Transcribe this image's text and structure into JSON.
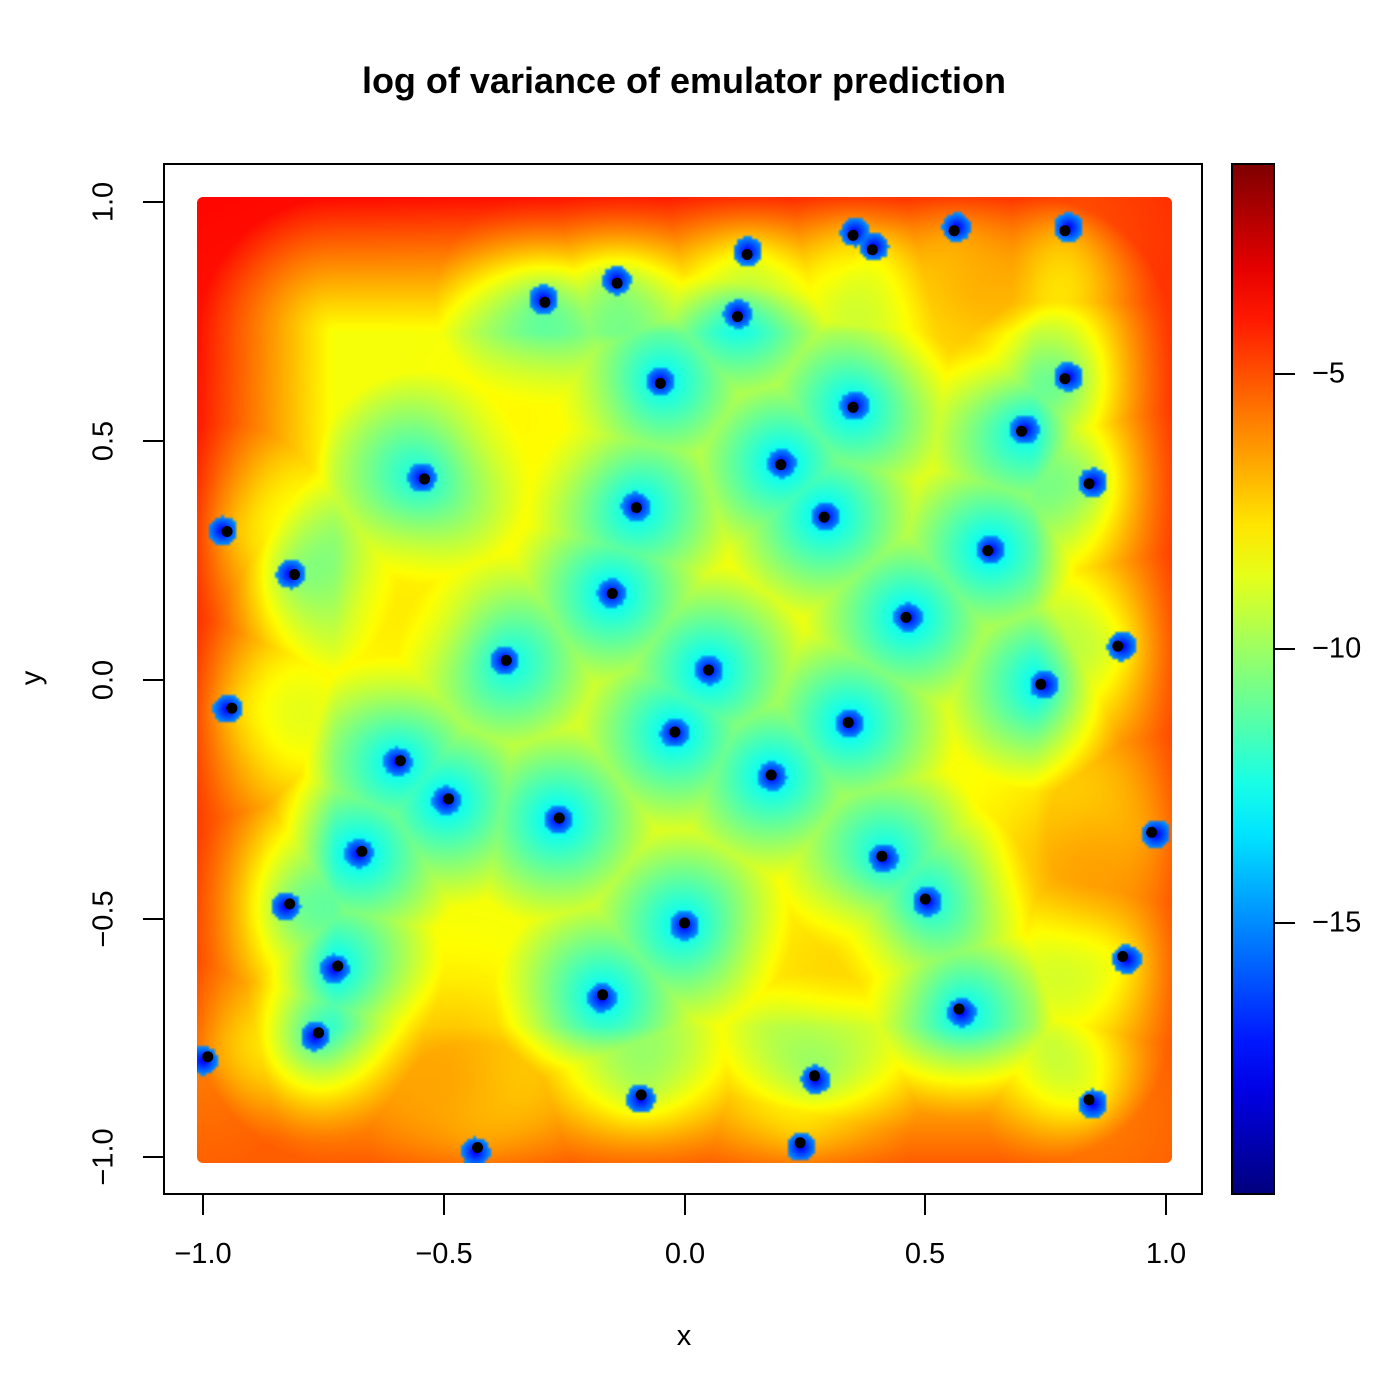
{
  "chart_data": {
    "type": "heatmap",
    "title": "log of variance of emulator prediction",
    "xlabel": "x",
    "ylabel": "y",
    "xlim": [
      -1.0,
      1.0
    ],
    "ylim": [
      -1.0,
      1.0
    ],
    "x_ticks": [
      "−1.0",
      "−0.5",
      "0.0",
      "0.5",
      "1.0"
    ],
    "y_ticks": [
      "−1.0",
      "−0.5",
      "0.0",
      "0.5",
      "1.0"
    ],
    "colorbar": {
      "range": [
        -20,
        -1.5
      ],
      "ticks": [
        "−5",
        "−10",
        "−15"
      ],
      "tick_values": [
        -5,
        -10,
        -15
      ],
      "palette": "jet (dark blue → blue → cyan → yellow → red → dark red)"
    },
    "grid": false,
    "legend": "colorbar right",
    "design_points": [
      [
        0.79,
        0.94
      ],
      [
        0.35,
        0.93
      ],
      [
        0.13,
        0.89
      ],
      [
        -0.14,
        0.83
      ],
      [
        -0.29,
        0.79
      ],
      [
        0.56,
        0.94
      ],
      [
        0.39,
        0.9
      ],
      [
        0.11,
        0.76
      ],
      [
        -0.05,
        0.62
      ],
      [
        0.79,
        0.63
      ],
      [
        0.35,
        0.57
      ],
      [
        0.7,
        0.52
      ],
      [
        0.2,
        0.45
      ],
      [
        -0.54,
        0.42
      ],
      [
        -0.1,
        0.36
      ],
      [
        0.29,
        0.34
      ],
      [
        0.84,
        0.41
      ],
      [
        -0.95,
        0.31
      ],
      [
        -0.81,
        0.22
      ],
      [
        0.63,
        0.27
      ],
      [
        -0.15,
        0.18
      ],
      [
        0.46,
        0.13
      ],
      [
        -0.37,
        0.04
      ],
      [
        0.05,
        0.02
      ],
      [
        0.9,
        0.07
      ],
      [
        0.74,
        -0.01
      ],
      [
        -0.94,
        -0.06
      ],
      [
        -0.02,
        -0.11
      ],
      [
        0.34,
        -0.09
      ],
      [
        -0.59,
        -0.17
      ],
      [
        0.18,
        -0.2
      ],
      [
        -0.49,
        -0.25
      ],
      [
        -0.26,
        -0.29
      ],
      [
        -0.67,
        -0.36
      ],
      [
        0.41,
        -0.37
      ],
      [
        -0.82,
        -0.47
      ],
      [
        0.5,
        -0.46
      ],
      [
        0.0,
        -0.51
      ],
      [
        -0.72,
        -0.6
      ],
      [
        0.91,
        -0.58
      ],
      [
        -0.17,
        -0.66
      ],
      [
        0.57,
        -0.69
      ],
      [
        -0.76,
        -0.74
      ],
      [
        -0.99,
        -0.79
      ],
      [
        -0.09,
        -0.87
      ],
      [
        0.27,
        -0.83
      ],
      [
        0.84,
        -0.88
      ],
      [
        0.24,
        -0.97
      ],
      [
        -0.43,
        -0.98
      ],
      [
        0.97,
        -0.32
      ]
    ],
    "hotspots": [
      {
        "x": 0.6,
        "y": 0.77,
        "value": -6.5
      },
      {
        "x": -0.33,
        "y": 0.54,
        "value": -8.2
      },
      {
        "x": -0.58,
        "y": 0.15,
        "value": -7.8
      },
      {
        "x": 0.8,
        "y": -0.38,
        "value": -6.2
      },
      {
        "x": 0.3,
        "y": -0.6,
        "value": -7.2
      },
      {
        "x": -0.48,
        "y": -0.8,
        "value": -6.3
      }
    ],
    "corners": {
      "top_left": -1.6,
      "top_right": -2.5,
      "bottom_left": -3.5,
      "bottom_right": -3.5
    }
  }
}
